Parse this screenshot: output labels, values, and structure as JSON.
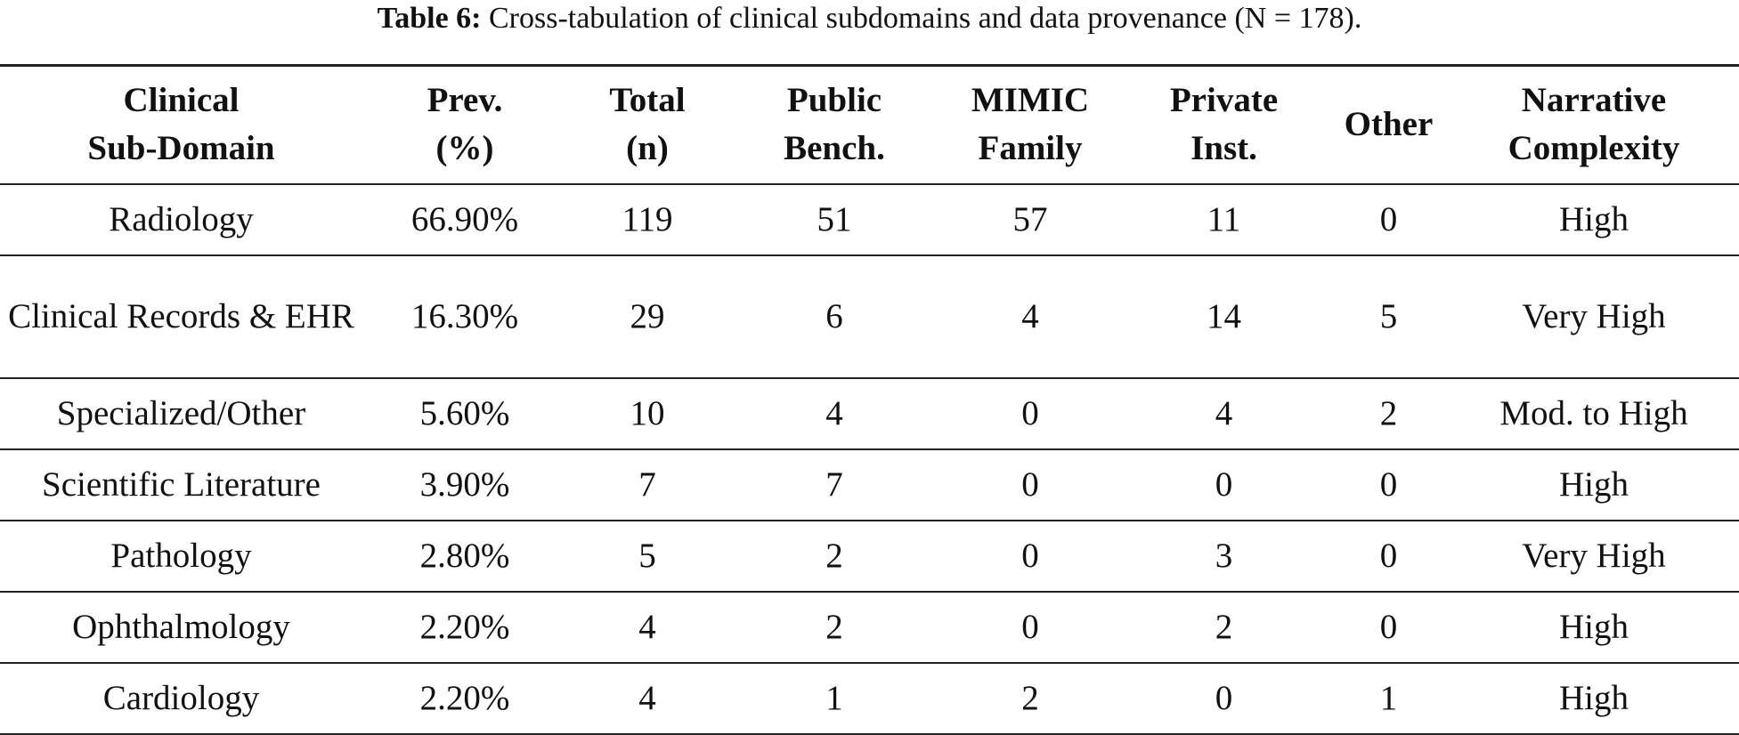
{
  "caption": {
    "label": "Table 6:",
    "text": "Cross-tabulation of clinical subdomains and data provenance (N = 178)."
  },
  "headers": [
    {
      "line1": "Clinical",
      "line2": "Sub-Domain"
    },
    {
      "line1": "Prev.",
      "line2": "(%)"
    },
    {
      "line1": "Total",
      "line2": "(n)"
    },
    {
      "line1": "Public",
      "line2": "Bench."
    },
    {
      "line1": "MIMIC",
      "line2": "Family"
    },
    {
      "line1": "Private",
      "line2": "Inst."
    },
    {
      "line1": "Other",
      "line2": ""
    },
    {
      "line1": "Narrative",
      "line2": "Complexity"
    }
  ],
  "rows": [
    {
      "domain": "Radiology",
      "prev": "66.90%",
      "total": "119",
      "public": "51",
      "mimic": "57",
      "private": "11",
      "other": "0",
      "complexity": "High"
    },
    {
      "domain": "Clinical Records & EHR",
      "prev": "16.30%",
      "total": "29",
      "public": "6",
      "mimic": "4",
      "private": "14",
      "other": "5",
      "complexity": "Very High"
    },
    {
      "domain": "Specialized/Other",
      "prev": "5.60%",
      "total": "10",
      "public": "4",
      "mimic": "0",
      "private": "4",
      "other": "2",
      "complexity": "Mod. to High"
    },
    {
      "domain": "Scientific Literature",
      "prev": "3.90%",
      "total": "7",
      "public": "7",
      "mimic": "0",
      "private": "0",
      "other": "0",
      "complexity": "High"
    },
    {
      "domain": "Pathology",
      "prev": "2.80%",
      "total": "5",
      "public": "2",
      "mimic": "0",
      "private": "3",
      "other": "0",
      "complexity": "Very High"
    },
    {
      "domain": "Ophthalmology",
      "prev": "2.20%",
      "total": "4",
      "public": "2",
      "mimic": "0",
      "private": "2",
      "other": "0",
      "complexity": "High"
    },
    {
      "domain": "Cardiology",
      "prev": "2.20%",
      "total": "4",
      "public": "1",
      "mimic": "2",
      "private": "0",
      "other": "1",
      "complexity": "High"
    }
  ]
}
